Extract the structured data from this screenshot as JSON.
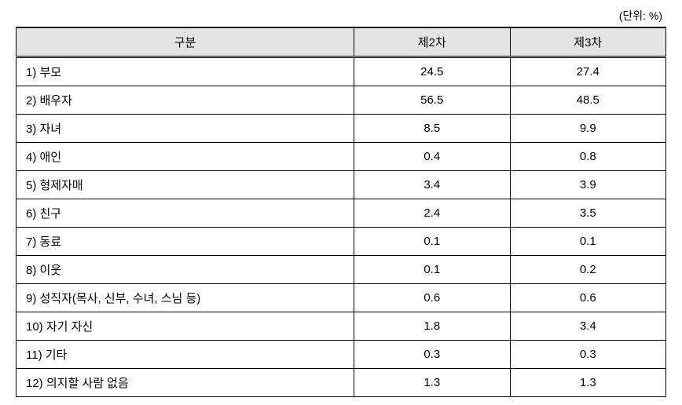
{
  "unit_label": "(단위: %)",
  "headers": {
    "category": "구분",
    "col1": "제2차",
    "col2": "제3차"
  },
  "rows": [
    {
      "label": "1) 부모",
      "v1": "24.5",
      "v2": "27.4"
    },
    {
      "label": "2) 배우자",
      "v1": "56.5",
      "v2": "48.5"
    },
    {
      "label": "3) 자녀",
      "v1": "8.5",
      "v2": "9.9"
    },
    {
      "label": "4) 애인",
      "v1": "0.4",
      "v2": "0.8"
    },
    {
      "label": "5) 형제자매",
      "v1": "3.4",
      "v2": "3.9"
    },
    {
      "label": "6) 친구",
      "v1": "2.4",
      "v2": "3.5"
    },
    {
      "label": "7) 동료",
      "v1": "0.1",
      "v2": "0.1"
    },
    {
      "label": "8) 이웃",
      "v1": "0.1",
      "v2": "0.2"
    },
    {
      "label": "9) 성직자(목사, 신부, 수녀, 스님 등)",
      "v1": "0.6",
      "v2": "0.6"
    },
    {
      "label": "10) 자기 자신",
      "v1": "1.8",
      "v2": "3.4"
    },
    {
      "label": "11) 기타",
      "v1": "0.3",
      "v2": "0.3"
    },
    {
      "label": "12) 의지할 사람 없음",
      "v1": "1.3",
      "v2": "1.3"
    }
  ]
}
